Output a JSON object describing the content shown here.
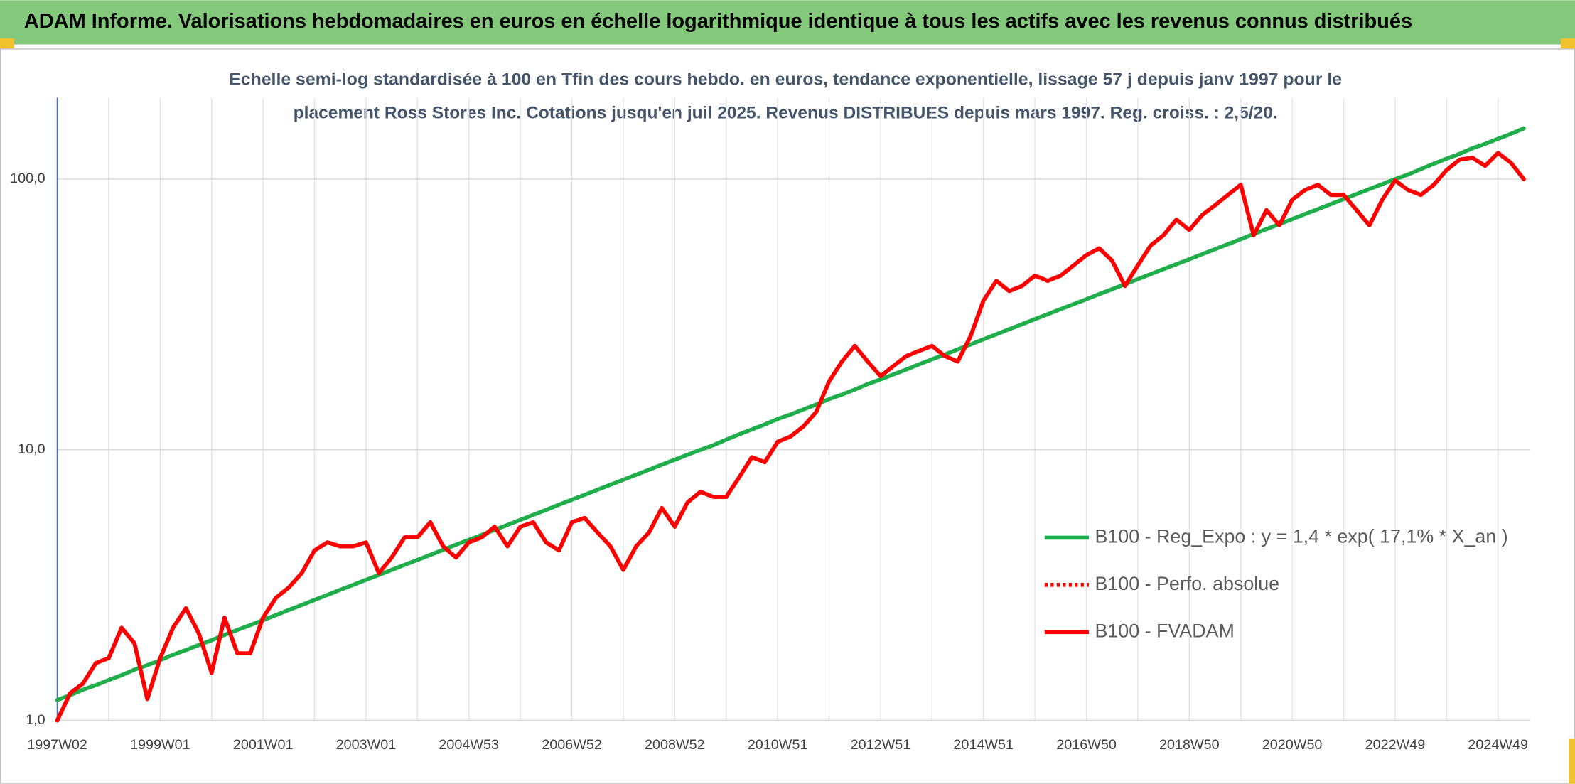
{
  "chart_data": {
    "type": "line",
    "title": "ADAM Informe. Valorisations hebdomadaires en euros en échelle logarithmique identique à tous les actifs avec les revenus connus distribués",
    "subtitle": [
      "Echelle semi-log standardisée à 100 en Tfin des cours hebdo. en euros, tendance exponentielle, lissage 57 j depuis janv 1997 pour le",
      "placement Ross Stores Inc. Cotations jusqu'en juil 2025. Revenus DISTRIBUES depuis mars 1997. Reg. croiss. : 2,5/20."
    ],
    "log_scale": true,
    "grid": true,
    "legend": "right",
    "ylim": [
      1,
      200
    ],
    "yticks": [
      {
        "value": 1,
        "label": "1,0"
      },
      {
        "value": 10,
        "label": "10,0"
      },
      {
        "value": 100,
        "label": "100,0"
      }
    ],
    "categories": [
      "1997W02",
      null,
      null,
      null,
      null,
      null,
      null,
      null,
      "1999W01",
      null,
      null,
      null,
      null,
      null,
      null,
      null,
      "2001W01",
      null,
      null,
      null,
      null,
      null,
      null,
      null,
      "2003W01",
      null,
      null,
      null,
      null,
      null,
      null,
      null,
      "2004W53",
      null,
      null,
      null,
      null,
      null,
      null,
      null,
      "2006W52",
      null,
      null,
      null,
      null,
      null,
      null,
      null,
      "2008W52",
      null,
      null,
      null,
      null,
      null,
      null,
      null,
      "2010W51",
      null,
      null,
      null,
      null,
      null,
      null,
      null,
      "2012W51",
      null,
      null,
      null,
      null,
      null,
      null,
      null,
      "2014W51",
      null,
      null,
      null,
      null,
      null,
      null,
      null,
      "2016W50",
      null,
      null,
      null,
      null,
      null,
      null,
      null,
      "2018W50",
      null,
      null,
      null,
      null,
      null,
      null,
      null,
      "2020W50",
      null,
      null,
      null,
      null,
      null,
      null,
      null,
      "2022W49",
      null,
      null,
      null,
      null,
      null,
      null,
      null,
      "2024W49",
      null,
      null
    ],
    "series": [
      {
        "name": "B100 - Reg_Expo : y = 1,4 * exp( 17,1% *  X_an )",
        "color": "#20ad4b",
        "style": "solid",
        "values": [
          1.19,
          1.24,
          1.3,
          1.35,
          1.41,
          1.47,
          1.54,
          1.6,
          1.67,
          1.75,
          1.82,
          1.9,
          1.98,
          2.07,
          2.16,
          2.25,
          2.35,
          2.45,
          2.56,
          2.67,
          2.79,
          2.91,
          3.04,
          3.17,
          3.31,
          3.45,
          3.6,
          3.76,
          3.92,
          4.09,
          4.27,
          4.46,
          4.65,
          4.85,
          5.06,
          5.28,
          5.51,
          5.75,
          6.0,
          6.27,
          6.54,
          6.82,
          7.12,
          7.43,
          7.75,
          8.09,
          8.44,
          8.81,
          9.19,
          9.59,
          10.0,
          10.4,
          10.9,
          11.4,
          11.9,
          12.4,
          13.0,
          13.5,
          14.1,
          14.7,
          15.4,
          16.0,
          16.7,
          17.5,
          18.2,
          19.0,
          19.8,
          20.7,
          21.6,
          22.5,
          23.5,
          24.5,
          25.6,
          26.7,
          27.9,
          29.1,
          30.4,
          31.7,
          33.1,
          34.5,
          36.0,
          37.6,
          39.2,
          40.9,
          42.7,
          44.6,
          46.5,
          48.5,
          50.6,
          52.8,
          55.1,
          57.5,
          60.0,
          62.7,
          65.4,
          68.2,
          71.2,
          74.3,
          77.5,
          80.9,
          84.4,
          88.1,
          91.9,
          95.9,
          100,
          104,
          109,
          114,
          119,
          124,
          130,
          135,
          141,
          147,
          154
        ]
      },
      {
        "name": "B100 - Perfo. absolue",
        "color": "#ff0000",
        "style": "dotted",
        "values": [
          1.0,
          1.26,
          1.37,
          1.63,
          1.7,
          2.2,
          1.93,
          1.2,
          1.7,
          2.2,
          2.6,
          2.1,
          1.5,
          2.4,
          1.77,
          1.77,
          2.4,
          2.84,
          3.1,
          3.5,
          4.25,
          4.55,
          4.4,
          4.4,
          4.55,
          3.5,
          4.0,
          4.75,
          4.75,
          5.4,
          4.4,
          4.0,
          4.55,
          4.75,
          5.2,
          4.4,
          5.2,
          5.4,
          4.55,
          4.25,
          5.4,
          5.6,
          4.95,
          4.4,
          3.6,
          4.4,
          4.95,
          6.1,
          5.2,
          6.4,
          7.0,
          6.7,
          6.7,
          7.9,
          9.4,
          9.0,
          10.7,
          11.2,
          12.2,
          13.8,
          17.9,
          21.2,
          24.2,
          21.2,
          18.7,
          20.4,
          22.2,
          23.2,
          24.2,
          22.2,
          21.2,
          26.3,
          35.6,
          42.1,
          38.6,
          40.3,
          44.0,
          42.1,
          44.0,
          48.0,
          52.4,
          55.5,
          50.0,
          40.3,
          48.0,
          56.9,
          62.1,
          70.9,
          64.9,
          73.7,
          80.1,
          87.4,
          95.3,
          62,
          76.9,
          67.5,
          83.9,
          91.2,
          95.3,
          87.4,
          87.4,
          76.9,
          67.5,
          83.9,
          98.9,
          91.2,
          87.4,
          95.3,
          108,
          118,
          120,
          112,
          125,
          115,
          100
        ]
      },
      {
        "name": "B100 - FVADAM",
        "color": "#ff0000",
        "style": "solid",
        "values": [
          1.0,
          1.26,
          1.37,
          1.63,
          1.7,
          2.2,
          1.93,
          1.2,
          1.7,
          2.2,
          2.6,
          2.1,
          1.5,
          2.4,
          1.77,
          1.77,
          2.4,
          2.84,
          3.1,
          3.5,
          4.25,
          4.55,
          4.4,
          4.4,
          4.55,
          3.5,
          4.0,
          4.75,
          4.75,
          5.4,
          4.4,
          4.0,
          4.55,
          4.75,
          5.2,
          4.4,
          5.2,
          5.4,
          4.55,
          4.25,
          5.4,
          5.6,
          4.95,
          4.4,
          3.6,
          4.4,
          4.95,
          6.1,
          5.2,
          6.4,
          7.0,
          6.7,
          6.7,
          7.9,
          9.4,
          9.0,
          10.7,
          11.2,
          12.2,
          13.8,
          17.9,
          21.2,
          24.2,
          21.2,
          18.7,
          20.4,
          22.2,
          23.2,
          24.2,
          22.2,
          21.2,
          26.3,
          35.6,
          42.1,
          38.6,
          40.3,
          44.0,
          42.1,
          44.0,
          48.0,
          52.4,
          55.5,
          50.0,
          40.3,
          48.0,
          56.9,
          62.1,
          70.9,
          64.9,
          73.7,
          80.1,
          87.4,
          95.3,
          62,
          76.9,
          67.5,
          83.9,
          91.2,
          95.3,
          87.4,
          87.4,
          76.9,
          67.5,
          83.9,
          98.9,
          91.2,
          87.4,
          95.3,
          108,
          118,
          120,
          112,
          125,
          115,
          100
        ]
      }
    ]
  }
}
